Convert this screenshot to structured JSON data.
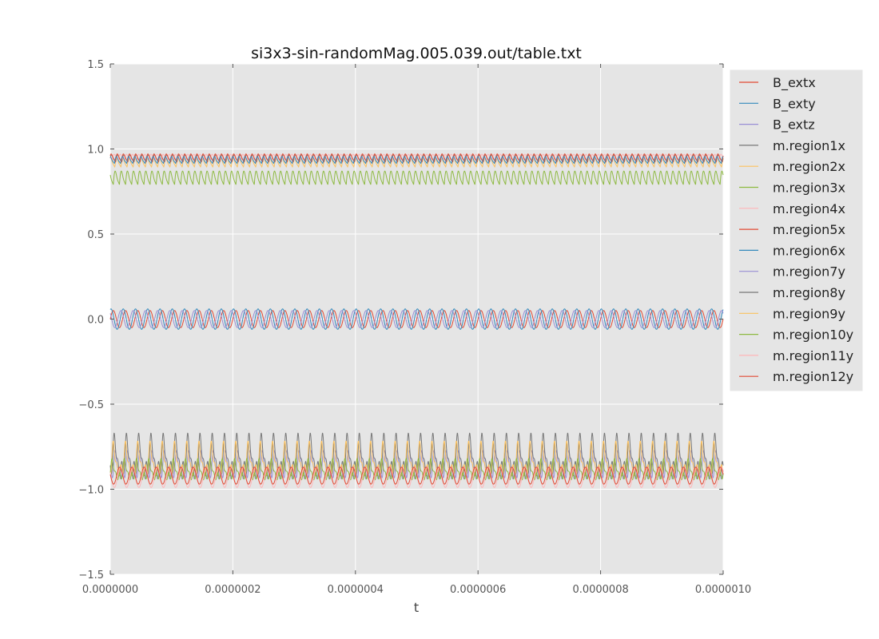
{
  "chart_data": {
    "type": "line",
    "title": "si3x3-sin-randomMag.005.039.out/table.txt",
    "xlabel": "t",
    "ylabel": "",
    "xlim": [
      0,
      1e-06
    ],
    "ylim": [
      -1.5,
      1.5
    ],
    "x_ticks": [
      0,
      2e-07,
      4e-07,
      6e-07,
      8e-07,
      1e-06
    ],
    "x_tick_labels": [
      "0.0000000",
      "0.0000002",
      "0.0000004",
      "0.0000006",
      "0.0000008",
      "0.0000010"
    ],
    "y_ticks": [
      -1.5,
      -1.0,
      -0.5,
      0.0,
      0.5,
      1.0,
      1.5
    ],
    "y_tick_labels": [
      "−1.5",
      "−1.0",
      "−0.5",
      "0.0",
      "0.5",
      "1.0",
      "1.5"
    ],
    "grid": true,
    "legend_position": "outside-right",
    "background": "#e5e5e5",
    "oscillation_cycles": 50,
    "series": [
      {
        "name": "B_extx",
        "color": "#e24a33",
        "base": 0.0,
        "amp": 0.05,
        "phase": 0.0,
        "shape": "sin"
      },
      {
        "name": "B_exty",
        "color": "#348abd",
        "base": 0.0,
        "amp": 0.06,
        "phase": 1.2,
        "shape": "sin"
      },
      {
        "name": "B_extz",
        "color": "#988ed5",
        "base": 0.0,
        "amp": 0.05,
        "phase": 2.4,
        "shape": "sin"
      },
      {
        "name": "m.region1x",
        "color": "#777777",
        "base": 0.93,
        "amp": 0.06,
        "phase": 0.3,
        "shape": "fold"
      },
      {
        "name": "m.region2x",
        "color": "#fbc15e",
        "base": 0.9,
        "amp": 0.08,
        "phase": 0.8,
        "shape": "fold"
      },
      {
        "name": "m.region3x",
        "color": "#8eba42",
        "base": 0.8,
        "amp": 0.12,
        "phase": 1.6,
        "shape": "fold"
      },
      {
        "name": "m.region4x",
        "color": "#ffb5b8",
        "base": 0.94,
        "amp": 0.05,
        "phase": 2.1,
        "shape": "fold"
      },
      {
        "name": "m.region5x",
        "color": "#e24a33",
        "base": 0.93,
        "amp": 0.07,
        "phase": 0.5,
        "shape": "fold"
      },
      {
        "name": "m.region6x",
        "color": "#348abd",
        "base": 0.92,
        "amp": 0.06,
        "phase": 1.0,
        "shape": "fold"
      },
      {
        "name": "m.region7y",
        "color": "#988ed5",
        "base": -0.88,
        "amp": 0.08,
        "phase": 0.4,
        "shape": "spike"
      },
      {
        "name": "m.region8y",
        "color": "#777777",
        "base": -0.83,
        "amp": 0.12,
        "phase": 0.9,
        "shape": "spike"
      },
      {
        "name": "m.region9y",
        "color": "#fbc15e",
        "base": -0.85,
        "amp": 0.1,
        "phase": 1.4,
        "shape": "spike"
      },
      {
        "name": "m.region10y",
        "color": "#8eba42",
        "base": -0.9,
        "amp": 0.06,
        "phase": 2.0,
        "shape": "spike"
      },
      {
        "name": "m.region11y",
        "color": "#ffb5b8",
        "base": -0.93,
        "amp": 0.06,
        "phase": 2.6,
        "shape": "sin"
      },
      {
        "name": "m.region12y",
        "color": "#e24a33",
        "base": -0.92,
        "amp": 0.05,
        "phase": 3.0,
        "shape": "sin"
      }
    ]
  }
}
